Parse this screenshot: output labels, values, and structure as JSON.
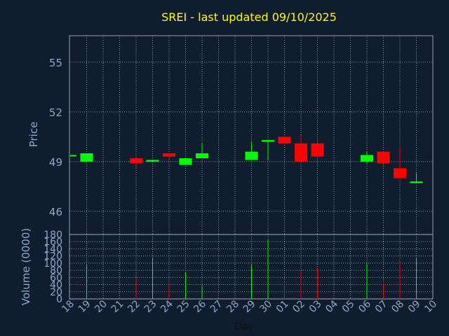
{
  "chart_data": {
    "type": "candlestick",
    "title": "SREI - last updated 09/10/2025",
    "xlabel": "Day",
    "ylabel_price": "Price",
    "ylabel_volume": "Volume (0000)",
    "price_ylim": [
      44.6,
      56.6
    ],
    "price_ticks": [
      "55",
      "52",
      "49",
      "46"
    ],
    "price_tick_values": [
      55,
      52,
      49,
      46
    ],
    "volume_ylim": [
      0,
      180
    ],
    "volume_ticks": [
      "180",
      "160",
      "140",
      "120",
      "100",
      "80",
      "60",
      "40",
      "20",
      "0"
    ],
    "volume_tick_values": [
      180,
      160,
      140,
      120,
      100,
      80,
      60,
      40,
      20,
      0
    ],
    "x_ticks": [
      "18",
      "19",
      "20",
      "21",
      "22",
      "23",
      "24",
      "25",
      "26",
      "27",
      "28",
      "29",
      "30",
      "01",
      "02",
      "03",
      "04",
      "05",
      "06",
      "07",
      "08",
      "09",
      "10"
    ],
    "grid": true,
    "colors": {
      "background": "#0f1d2f",
      "title": "#ffff00",
      "axis_text": "#8fa8c8",
      "frame": "#a0a0a0",
      "grid": "#c8c8c8",
      "up": "#00ff00",
      "down": "#ff0000"
    },
    "candles": [
      {
        "x": "18",
        "open": 49.4,
        "high": 49.4,
        "low": 49.4,
        "close": 49.4,
        "volume": 0
      },
      {
        "x": "19",
        "open": 49.0,
        "high": 49.5,
        "low": 49.0,
        "close": 49.5,
        "volume": 95
      },
      {
        "x": "22",
        "open": 49.2,
        "high": 49.2,
        "low": 48.6,
        "close": 48.9,
        "volume": 60
      },
      {
        "x": "23",
        "open": 49.0,
        "high": 49.1,
        "low": 49.0,
        "close": 49.1,
        "volume": 115
      },
      {
        "x": "24",
        "open": 49.5,
        "high": 49.5,
        "low": 49.1,
        "close": 49.3,
        "volume": 40
      },
      {
        "x": "25",
        "open": 48.8,
        "high": 49.2,
        "low": 48.8,
        "close": 49.2,
        "volume": 75
      },
      {
        "x": "26",
        "open": 49.2,
        "high": 50.1,
        "low": 49.2,
        "close": 49.5,
        "volume": 35
      },
      {
        "x": "29",
        "open": 49.1,
        "high": 50.2,
        "low": 49.1,
        "close": 49.6,
        "volume": 95
      },
      {
        "x": "30",
        "open": 50.2,
        "high": 50.3,
        "low": 49.1,
        "close": 50.3,
        "volume": 165
      },
      {
        "x": "01",
        "open": 50.5,
        "high": 50.5,
        "low": 50.1,
        "close": 50.1,
        "volume": 50
      },
      {
        "x": "02",
        "open": 50.1,
        "high": 50.6,
        "low": 49.0,
        "close": 49.0,
        "volume": 75
      },
      {
        "x": "03",
        "open": 50.1,
        "high": 50.1,
        "low": 49.3,
        "close": 49.3,
        "volume": 85
      },
      {
        "x": "06",
        "open": 49.0,
        "high": 49.6,
        "low": 48.9,
        "close": 49.4,
        "volume": 100
      },
      {
        "x": "07",
        "open": 49.6,
        "high": 49.6,
        "low": 48.8,
        "close": 48.9,
        "volume": 45
      },
      {
        "x": "08",
        "open": 48.6,
        "high": 49.9,
        "low": 47.9,
        "close": 48.0,
        "volume": 100
      },
      {
        "x": "09",
        "open": 47.7,
        "high": 48.3,
        "low": 47.7,
        "close": 47.8,
        "volume": 115
      }
    ]
  }
}
